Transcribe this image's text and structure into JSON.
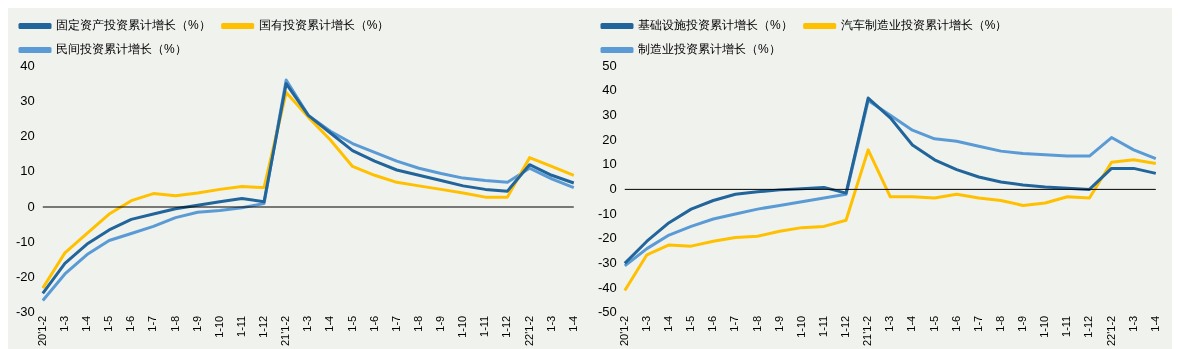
{
  "chart_data": [
    {
      "type": "line",
      "categories": [
        "20'1-2",
        "1-3",
        "1-4",
        "1-5",
        "1-6",
        "1-7",
        "1-8",
        "1-9",
        "1-10",
        "1-11",
        "1-12",
        "21'1-2",
        "1-3",
        "1-4",
        "1-5",
        "1-6",
        "1-7",
        "1-8",
        "1-9",
        "1-10",
        "1-11",
        "1-12",
        "22'1-2",
        "1-3",
        "1-4"
      ],
      "series": [
        {
          "name": "固定资产投资累计增长（%）",
          "color": "#21659a",
          "values": [
            -24.5,
            -16,
            -10.5,
            -6.5,
            -3.5,
            -2,
            -0.5,
            0.5,
            1.5,
            2.4,
            1.5,
            35,
            26,
            21,
            16,
            13,
            10.5,
            9,
            7.5,
            6,
            5,
            4.5,
            12,
            9,
            6.8
          ]
        },
        {
          "name": "国有投资累计增长（%）",
          "color": "#ffc000",
          "values": [
            -23,
            -13,
            -7.5,
            -2,
            1.8,
            3.8,
            3.2,
            4,
            5,
            5.8,
            5.5,
            32.5,
            25.5,
            19,
            11.5,
            9,
            7,
            6,
            5,
            4,
            2.8,
            2.8,
            14,
            11.5,
            9
          ]
        },
        {
          "name": "民间投资累计增长（%）",
          "color": "#5b9bd5",
          "values": [
            -26.5,
            -19,
            -13.5,
            -9.5,
            -7.5,
            -5.5,
            -3,
            -1.5,
            -1,
            -0.2,
            1,
            36,
            26,
            21.5,
            18,
            15.5,
            13,
            11,
            9.5,
            8.2,
            7.5,
            7,
            11,
            8,
            5.5
          ]
        }
      ],
      "ylim": [
        -30,
        40
      ],
      "yticks": [
        -30,
        -20,
        -10,
        0,
        10,
        20,
        30,
        40
      ],
      "legend": "top",
      "grid": false,
      "ref_lines": [
        {
          "axis": "y",
          "value": 0,
          "color": "#000000"
        }
      ]
    },
    {
      "type": "line",
      "categories": [
        "20'1-2",
        "1-3",
        "1-4",
        "1-5",
        "1-6",
        "1-7",
        "1-8",
        "1-9",
        "1-10",
        "1-11",
        "1-12",
        "21'1-2",
        "1-3",
        "1-4",
        "1-5",
        "1-6",
        "1-7",
        "1-8",
        "1-9",
        "1-10",
        "1-11",
        "1-12",
        "22'1-2",
        "1-3",
        "1-4"
      ],
      "series": [
        {
          "name": "基础设施投资累计增长（%）",
          "color": "#21659a",
          "values": [
            -30,
            -21,
            -13.5,
            -8,
            -4.5,
            -2,
            -1,
            -0.2,
            0.3,
            0.8,
            -1.5,
            37,
            29,
            18,
            12,
            8,
            5,
            3,
            1.8,
            1,
            0.5,
            0,
            8.5,
            8.5,
            6.5
          ]
        },
        {
          "name": "汽车制造业投资累计增长（%）",
          "color": "#ffc000",
          "values": [
            -41,
            -26.5,
            -22.5,
            -23,
            -21,
            -19.5,
            -19,
            -17,
            -15.5,
            -15,
            -12.5,
            16,
            -3,
            -3,
            -3.5,
            -2,
            -3.5,
            -4.5,
            -6.5,
            -5.5,
            -3,
            -3.5,
            11,
            12,
            10.5
          ]
        },
        {
          "name": "制造业投资累计增长（%）",
          "color": "#5b9bd5",
          "values": [
            -31,
            -24,
            -18.5,
            -15,
            -12,
            -10,
            -8,
            -6.5,
            -5,
            -3.5,
            -2,
            36,
            30,
            24,
            20.5,
            19.5,
            17.5,
            15.5,
            14.5,
            14,
            13.5,
            13.5,
            21,
            16,
            12.5
          ]
        }
      ],
      "ylim": [
        -50,
        50
      ],
      "yticks": [
        -50,
        -40,
        -30,
        -20,
        -10,
        0,
        10,
        20,
        30,
        40,
        50
      ],
      "legend": "top",
      "grid": false,
      "ref_lines": [
        {
          "axis": "y",
          "value": 0,
          "color": "#000000"
        }
      ]
    }
  ]
}
